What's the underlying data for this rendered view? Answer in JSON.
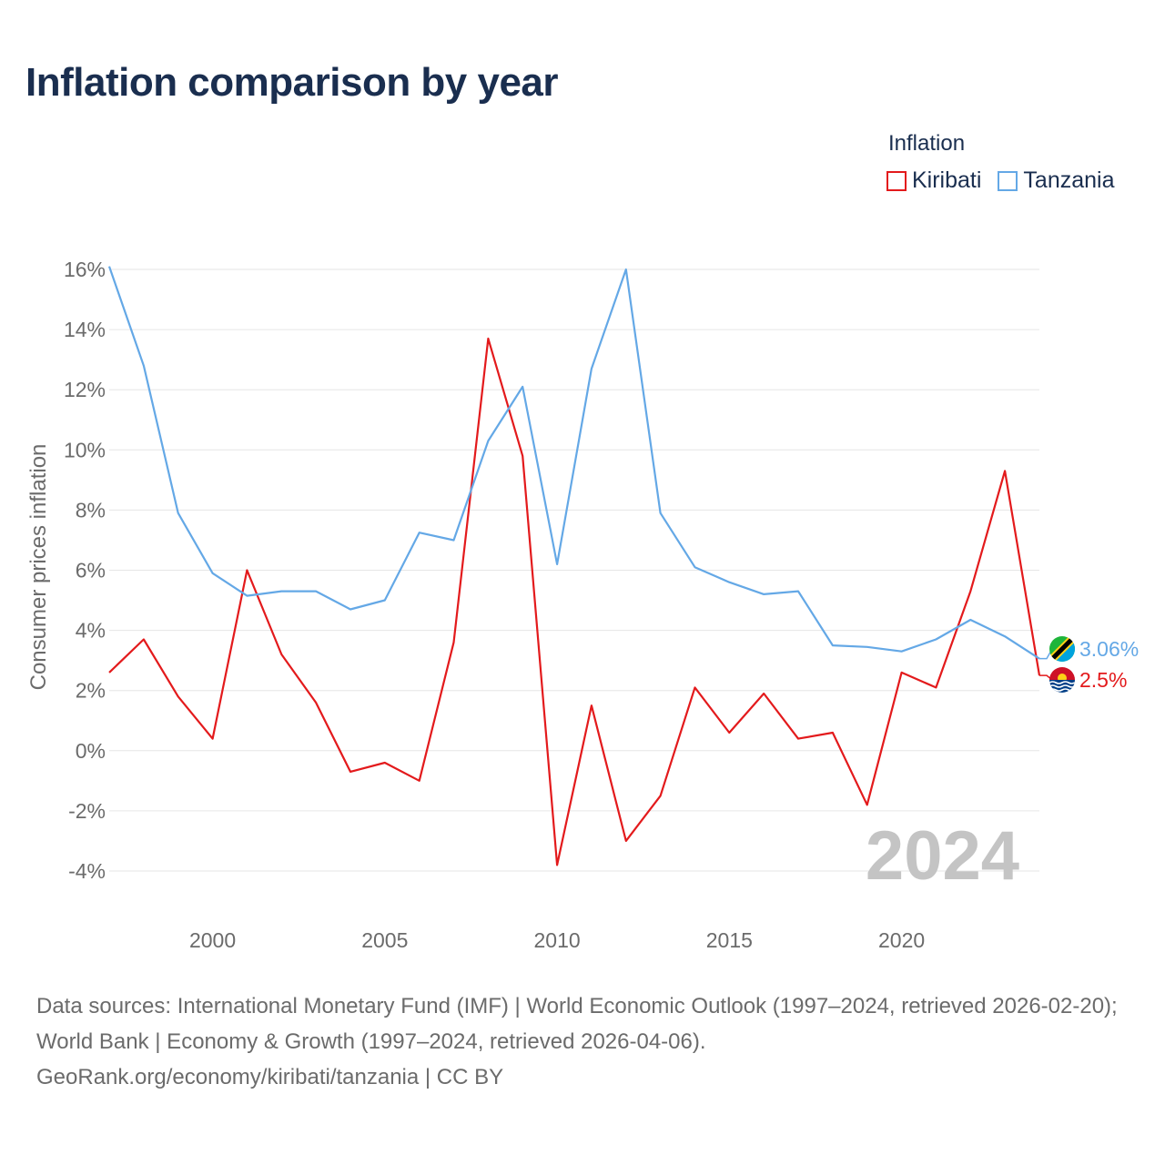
{
  "title": "Inflation comparison by year",
  "legend": {
    "title": "Inflation",
    "items": [
      {
        "label": "Kiribati",
        "color": "#e31a1c"
      },
      {
        "label": "Tanzania",
        "color": "#64a8e6"
      }
    ]
  },
  "chart_data": {
    "type": "line",
    "title": "Inflation comparison by year",
    "ylabel": "Consumer prices inflation",
    "xlabel": "",
    "x": [
      1997,
      1998,
      1999,
      2000,
      2001,
      2002,
      2003,
      2004,
      2005,
      2006,
      2007,
      2008,
      2009,
      2010,
      2011,
      2012,
      2013,
      2014,
      2015,
      2016,
      2017,
      2018,
      2019,
      2020,
      2021,
      2022,
      2023,
      2024
    ],
    "xlim": [
      1997,
      2024
    ],
    "ylim": [
      -5,
      16.5
    ],
    "x_ticks": [
      2000,
      2005,
      2010,
      2015,
      2020
    ],
    "y_ticks": [
      16,
      14,
      12,
      10,
      8,
      6,
      4,
      2,
      0,
      -2,
      -4
    ],
    "y_tick_labels": [
      "16%",
      "14%",
      "12%",
      "10%",
      "8%",
      "6%",
      "4%",
      "2%",
      "0%",
      "-2%",
      "-4%"
    ],
    "year_watermark": "2024",
    "series": [
      {
        "name": "Kiribati",
        "color": "#e31a1c",
        "end_label": "2.5%",
        "values": [
          2.6,
          3.7,
          1.8,
          0.4,
          6.0,
          3.2,
          1.6,
          -0.7,
          -0.4,
          -1.0,
          3.6,
          13.7,
          9.8,
          -3.8,
          1.5,
          -3.0,
          -1.5,
          2.1,
          0.6,
          1.9,
          0.4,
          0.6,
          -1.8,
          2.6,
          2.1,
          5.3,
          9.3,
          2.5
        ]
      },
      {
        "name": "Tanzania",
        "color": "#64a8e6",
        "end_label": "3.06%",
        "values": [
          16.1,
          12.8,
          7.9,
          5.9,
          5.15,
          5.3,
          5.3,
          4.7,
          5.0,
          7.25,
          7.0,
          10.3,
          12.1,
          6.2,
          12.7,
          16.0,
          7.9,
          6.1,
          5.6,
          5.2,
          5.3,
          3.5,
          3.45,
          3.3,
          3.7,
          4.35,
          3.8,
          3.06
        ]
      }
    ]
  },
  "footer": {
    "sources": "Data sources: International Monetary Fund (IMF) | World Economic Outlook (1997–2024, retrieved 2026-02-20); World Bank | Economy & Growth (1997–2024, retrieved 2026-04-06).",
    "attribution": "GeoRank.org/economy/kiribati/tanzania | CC BY"
  }
}
